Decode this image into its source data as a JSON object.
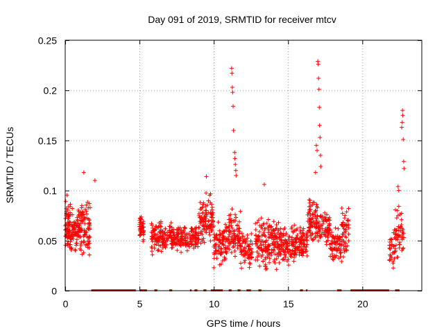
{
  "chart_data": {
    "type": "scatter",
    "title": "Day 091 of 2019, SRMTID for receiver mtcv",
    "xlabel": "GPS time / hours",
    "ylabel": "SRMTID / TECUs",
    "xlim": [
      0,
      24
    ],
    "ylim": [
      0,
      0.25
    ],
    "x_ticks": [
      0,
      5,
      10,
      15,
      20
    ],
    "x_tick_labels": [
      "0",
      "5",
      "10",
      "15",
      "20"
    ],
    "y_ticks": [
      0,
      0.05,
      0.1,
      0.15,
      0.2,
      0.25
    ],
    "y_tick_labels": [
      "0",
      "0.05",
      "0.1",
      "0.15",
      "0.2",
      "0.25"
    ],
    "grid": true,
    "marker": "+",
    "color": "#ff0000",
    "clusters": [
      {
        "x_start": 0.0,
        "x_end": 0.3,
        "y_low": 0.025,
        "y_high": 0.1,
        "count": 60
      },
      {
        "x_start": 0.3,
        "x_end": 1.0,
        "y_low": 0.03,
        "y_high": 0.09,
        "count": 90
      },
      {
        "x_start": 1.0,
        "x_end": 1.7,
        "y_low": 0.02,
        "y_high": 0.1,
        "count": 80
      },
      {
        "x_start": 5.0,
        "x_end": 5.3,
        "y_low": 0.04,
        "y_high": 0.085,
        "count": 40
      },
      {
        "x_start": 5.8,
        "x_end": 6.5,
        "y_low": 0.03,
        "y_high": 0.075,
        "count": 70
      },
      {
        "x_start": 6.5,
        "x_end": 9.0,
        "y_low": 0.035,
        "y_high": 0.07,
        "count": 220
      },
      {
        "x_start": 9.0,
        "x_end": 10.0,
        "y_low": 0.04,
        "y_high": 0.1,
        "count": 110
      },
      {
        "x_start": 10.0,
        "x_end": 11.0,
        "y_low": 0.02,
        "y_high": 0.075,
        "count": 90
      },
      {
        "x_start": 11.0,
        "x_end": 11.8,
        "y_low": 0.03,
        "y_high": 0.085,
        "count": 80
      },
      {
        "x_start": 11.8,
        "x_end": 12.6,
        "y_low": 0.015,
        "y_high": 0.065,
        "count": 70
      },
      {
        "x_start": 12.8,
        "x_end": 13.6,
        "y_low": 0.01,
        "y_high": 0.085,
        "count": 80
      },
      {
        "x_start": 13.6,
        "x_end": 14.4,
        "y_low": 0.015,
        "y_high": 0.08,
        "count": 90
      },
      {
        "x_start": 14.4,
        "x_end": 15.5,
        "y_low": 0.015,
        "y_high": 0.07,
        "count": 110
      },
      {
        "x_start": 15.5,
        "x_end": 16.3,
        "y_low": 0.025,
        "y_high": 0.07,
        "count": 80
      },
      {
        "x_start": 16.3,
        "x_end": 17.0,
        "y_low": 0.04,
        "y_high": 0.1,
        "count": 80
      },
      {
        "x_start": 17.0,
        "x_end": 17.8,
        "y_low": 0.04,
        "y_high": 0.085,
        "count": 70
      },
      {
        "x_start": 17.8,
        "x_end": 18.6,
        "y_low": 0.025,
        "y_high": 0.07,
        "count": 70
      },
      {
        "x_start": 18.6,
        "x_end": 19.1,
        "y_low": 0.02,
        "y_high": 0.095,
        "count": 50
      },
      {
        "x_start": 21.8,
        "x_end": 22.2,
        "y_low": 0.015,
        "y_high": 0.065,
        "count": 30
      },
      {
        "x_start": 22.2,
        "x_end": 22.8,
        "y_low": 0.02,
        "y_high": 0.1,
        "count": 50
      }
    ],
    "spikes": [
      {
        "x": 1.25,
        "y": 0.118
      },
      {
        "x": 2.0,
        "y": 0.11
      },
      {
        "x": 11.2,
        "y": 0.222
      },
      {
        "x": 11.22,
        "y": 0.217
      },
      {
        "x": 11.25,
        "y": 0.203
      },
      {
        "x": 11.27,
        "y": 0.198
      },
      {
        "x": 11.3,
        "y": 0.184
      },
      {
        "x": 11.33,
        "y": 0.16
      },
      {
        "x": 11.4,
        "y": 0.138
      },
      {
        "x": 11.42,
        "y": 0.132
      },
      {
        "x": 11.45,
        "y": 0.126
      },
      {
        "x": 11.48,
        "y": 0.12
      },
      {
        "x": 11.5,
        "y": 0.115
      },
      {
        "x": 9.5,
        "y": 0.114
      },
      {
        "x": 13.4,
        "y": 0.106
      },
      {
        "x": 17.0,
        "y": 0.229
      },
      {
        "x": 17.03,
        "y": 0.226
      },
      {
        "x": 17.05,
        "y": 0.212
      },
      {
        "x": 17.08,
        "y": 0.201
      },
      {
        "x": 17.1,
        "y": 0.183
      },
      {
        "x": 17.12,
        "y": 0.165
      },
      {
        "x": 17.15,
        "y": 0.153
      },
      {
        "x": 16.9,
        "y": 0.145
      },
      {
        "x": 16.95,
        "y": 0.14
      },
      {
        "x": 17.18,
        "y": 0.135
      },
      {
        "x": 17.2,
        "y": 0.124
      },
      {
        "x": 16.85,
        "y": 0.118
      },
      {
        "x": 22.7,
        "y": 0.18
      },
      {
        "x": 22.72,
        "y": 0.175
      },
      {
        "x": 22.68,
        "y": 0.168
      },
      {
        "x": 22.65,
        "y": 0.163
      },
      {
        "x": 22.75,
        "y": 0.151
      },
      {
        "x": 22.78,
        "y": 0.129
      },
      {
        "x": 22.8,
        "y": 0.122
      },
      {
        "x": 22.4,
        "y": 0.104
      },
      {
        "x": 22.45,
        "y": 0.1
      }
    ],
    "zero_segments": [
      [
        1.75,
        4.75
      ],
      [
        5.0,
        5.5
      ],
      [
        6.0,
        6.2
      ],
      [
        7.0,
        7.2
      ],
      [
        8.4,
        8.5
      ],
      [
        8.7,
        8.9
      ],
      [
        9.3,
        9.5
      ],
      [
        9.8,
        10.6
      ],
      [
        11.0,
        11.2
      ],
      [
        11.6,
        11.8
      ],
      [
        12.2,
        12.5
      ],
      [
        13.0,
        13.2
      ],
      [
        15.8,
        16.0
      ],
      [
        16.2,
        16.3
      ],
      [
        18.3,
        18.6
      ],
      [
        19.2,
        21.8
      ],
      [
        22.2,
        22.5
      ]
    ]
  }
}
